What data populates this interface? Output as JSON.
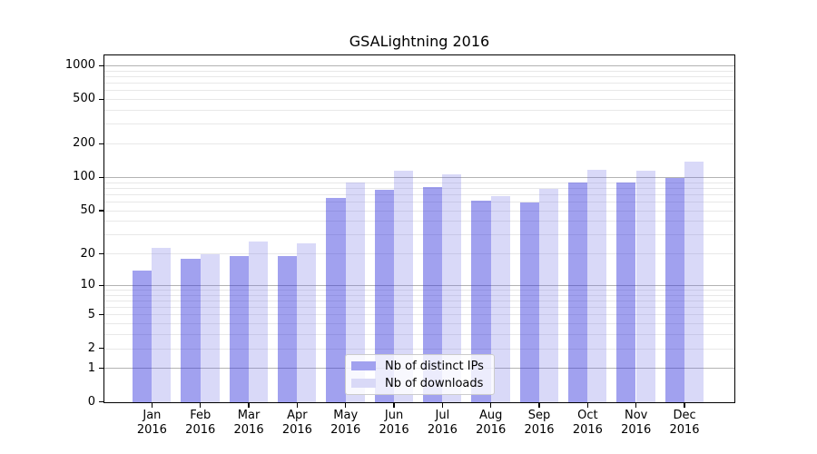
{
  "title": "GSALightning 2016",
  "legend": {
    "items": [
      {
        "label": "Nb of distinct IPs",
        "swatch_color": "#a1a1ef"
      },
      {
        "label": "Nb of downloads",
        "swatch_color": "#d9d9f7"
      }
    ]
  },
  "colors": {
    "ips_bar_rgba": "rgba(46,46,219,0.45)",
    "downloads_bar_rgba": "rgba(103,103,227,0.25)",
    "grid_major": "#b3b3b3",
    "grid_minor": "#e8e8e8",
    "axis": "#000000"
  },
  "y_axis": {
    "tick_labels": [
      "1000",
      "500",
      "200",
      "100",
      "50",
      "20",
      "10",
      "5",
      "2",
      "1",
      "0"
    ],
    "tick_values": [
      1000,
      500,
      200,
      100,
      50,
      20,
      10,
      5,
      2,
      1,
      0
    ],
    "minor_grid_values": [
      2,
      3,
      4,
      5,
      6,
      7,
      8,
      9,
      20,
      30,
      40,
      50,
      60,
      70,
      80,
      90,
      200,
      300,
      400,
      500,
      600,
      700,
      800,
      900
    ],
    "major_grid_values": [
      1,
      10,
      100,
      1000
    ]
  },
  "x_axis": {
    "months": [
      "Jan",
      "Feb",
      "Mar",
      "Apr",
      "May",
      "Jun",
      "Jul",
      "Aug",
      "Sep",
      "Oct",
      "Nov",
      "Dec"
    ],
    "year": "2016"
  },
  "chart_data": {
    "type": "bar",
    "title": "GSALightning 2016",
    "categories": [
      "Jan 2016",
      "Feb 2016",
      "Mar 2016",
      "Apr 2016",
      "May 2016",
      "Jun 2016",
      "Jul 2016",
      "Aug 2016",
      "Sep 2016",
      "Oct 2016",
      "Nov 2016",
      "Dec 2016"
    ],
    "series": [
      {
        "name": "Nb of distinct IPs",
        "values": [
          14,
          18,
          19,
          19,
          65,
          78,
          82,
          62,
          60,
          90,
          90,
          99
        ]
      },
      {
        "name": "Nb of downloads",
        "values": [
          23,
          20,
          26,
          25,
          90,
          115,
          106,
          68,
          79,
          118,
          116,
          140
        ]
      }
    ],
    "yscale": "log(1+y)",
    "y_ticks": [
      0,
      1,
      2,
      5,
      10,
      20,
      50,
      100,
      200,
      500,
      1000
    ],
    "ylim_top_approx": 1270,
    "grid": true,
    "legend_position": "lower center inside plot"
  }
}
